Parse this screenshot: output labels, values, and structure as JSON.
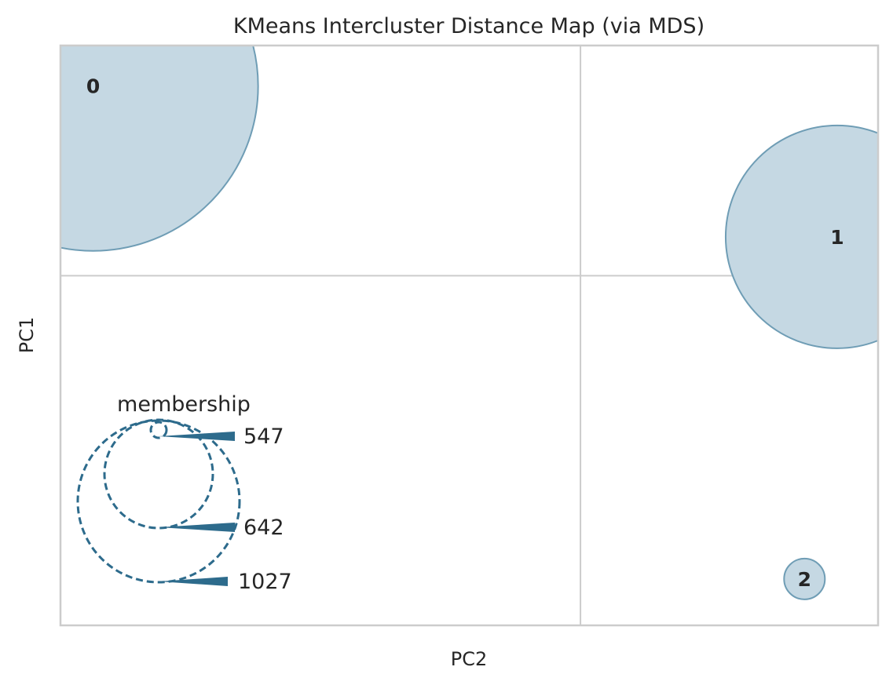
{
  "chart_data": {
    "type": "scatter",
    "title": "KMeans Intercluster Distance Map (via MDS)",
    "xlabel": "PC2",
    "ylabel": "PC1",
    "grid": true,
    "colors": {
      "bubble_fill": "#c5d8e3",
      "bubble_edge": "#6f9db5",
      "legend": "#2d6b8c",
      "grid": "#cccccc",
      "frame": "#cccccc"
    },
    "clusters": [
      {
        "label": "0",
        "pc2": 0.04,
        "pc1": 0.93,
        "membership": 1027
      },
      {
        "label": "1",
        "pc2": 0.95,
        "pc1": 0.67,
        "membership": 642
      },
      {
        "label": "2",
        "pc2": 0.91,
        "pc1": 0.08,
        "membership": 547
      }
    ],
    "legend": {
      "title": "membership",
      "entries": [
        "547",
        "642",
        "1027"
      ],
      "placement": "lower-left"
    }
  }
}
